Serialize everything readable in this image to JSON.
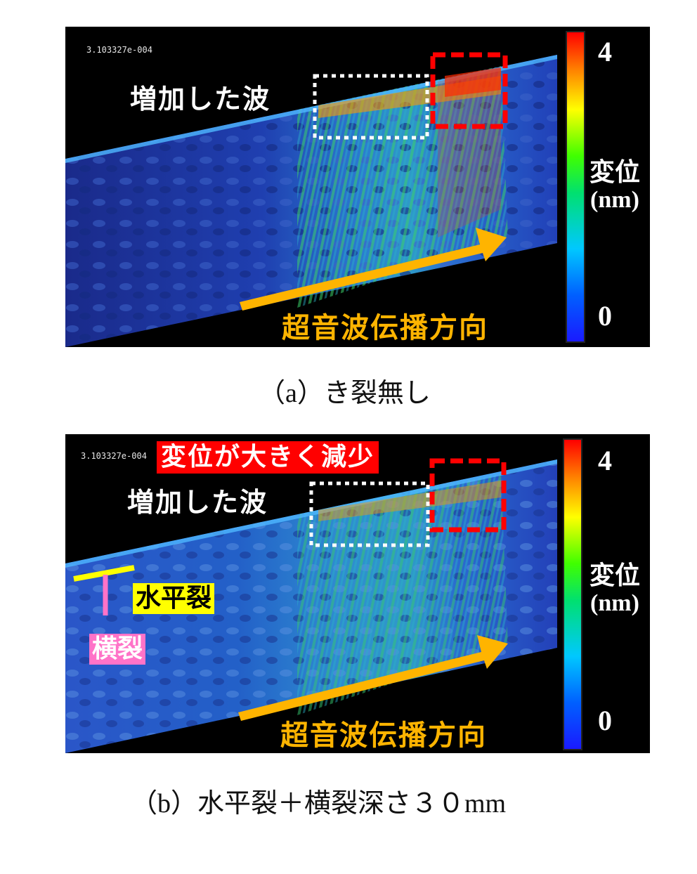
{
  "panel_a": {
    "timestamp": "3.103327e-004",
    "increased_wave_label": "増加した波",
    "direction_label": "超音波伝播方向",
    "colorbar": {
      "max": "4",
      "min": "0",
      "title": "変位",
      "unit": "(nm)"
    },
    "caption": "（a）き裂無し"
  },
  "panel_b": {
    "timestamp": "3.103327e-004",
    "reduced_label": "変位が大きく減少",
    "increased_wave_label": "増加した波",
    "horizontal_crack_label": "水平裂",
    "transverse_crack_label": "横裂",
    "direction_label": "超音波伝播方向",
    "colorbar": {
      "max": "4",
      "min": "0",
      "title": "変位",
      "unit": "(nm)"
    },
    "caption": "（b）水平裂＋横裂深さ３０mm"
  },
  "colors": {
    "background": "#000000",
    "arrow": "#ffb400",
    "box_red": "#ff0000",
    "box_white": "#ffffff",
    "crack_horizontal": "#ffff00",
    "crack_transverse": "#ff73c8"
  }
}
